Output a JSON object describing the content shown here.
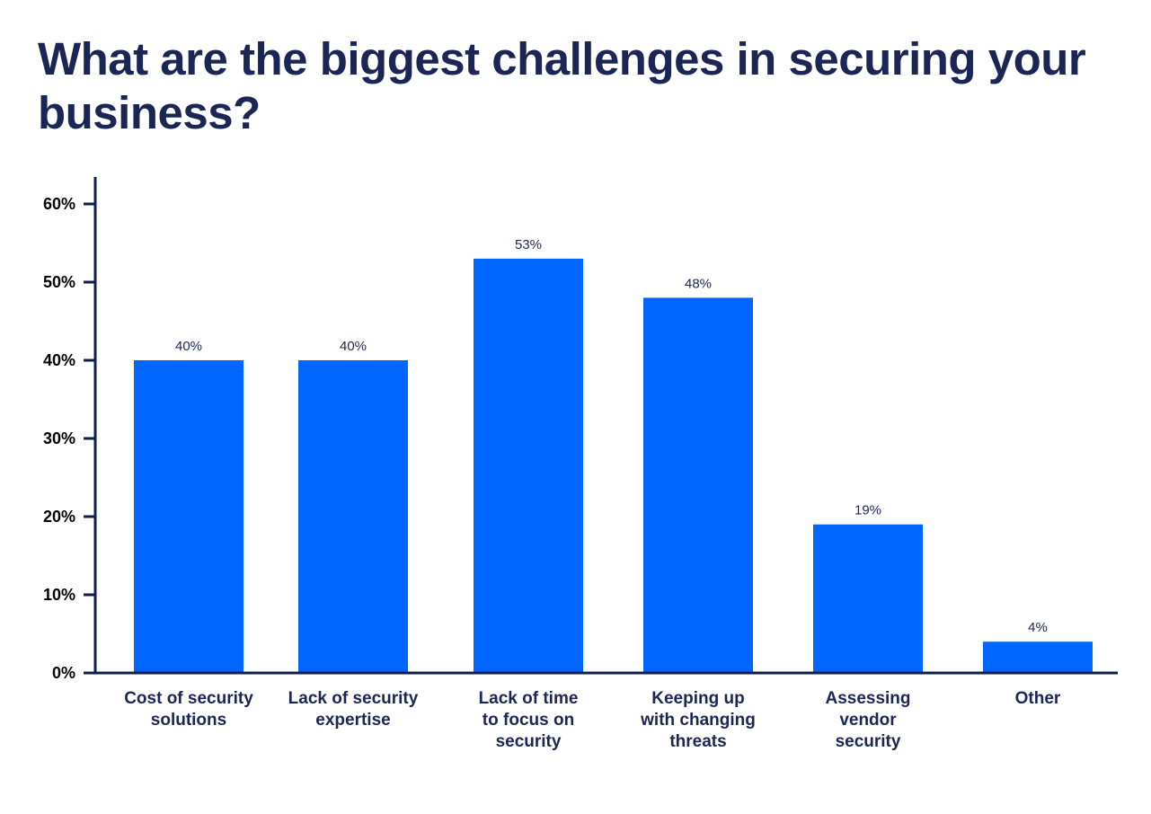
{
  "chart_data": {
    "type": "bar",
    "title": "What are the biggest challenges in securing your business?",
    "categories": [
      [
        "Cost of security",
        "solutions"
      ],
      [
        "Lack of security",
        "expertise"
      ],
      [
        "Lack of time",
        "to focus on",
        "security"
      ],
      [
        "Keeping up",
        "with changing",
        "threats"
      ],
      [
        "Assessing",
        "vendor",
        "security"
      ],
      [
        "Other"
      ]
    ],
    "values": [
      40,
      40,
      53,
      48,
      19,
      4
    ],
    "data_labels": [
      "40%",
      "40%",
      "53%",
      "48%",
      "19%",
      "4%"
    ],
    "ylim": [
      0,
      60
    ],
    "yticks": [
      0,
      10,
      20,
      30,
      40,
      50,
      60
    ],
    "ytick_labels": [
      "0%",
      "10%",
      "20%",
      "30%",
      "40%",
      "50%",
      "60%"
    ],
    "xlabel": "",
    "ylabel": "",
    "grid": false,
    "colors": {
      "bar": "#0066ff",
      "axis": "#0f1f4f",
      "title": "#1c2655"
    }
  }
}
